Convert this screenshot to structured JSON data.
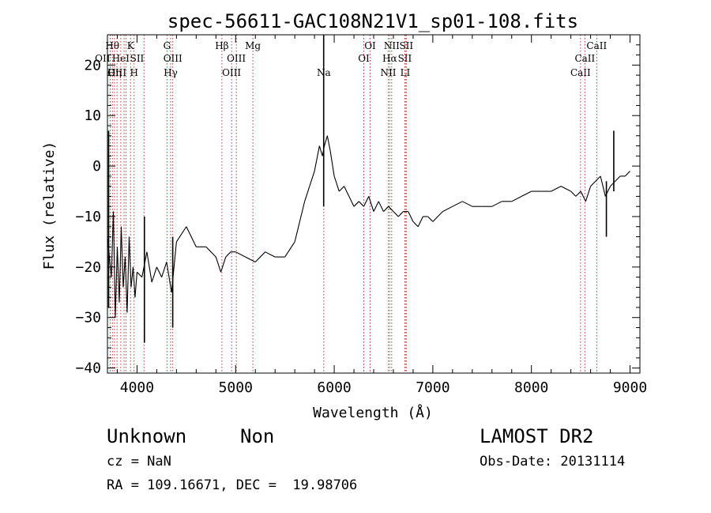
{
  "chart_data": {
    "type": "line",
    "title": "spec-56611-GAC108N21V1_sp01-108.fits",
    "xlabel": "Wavelength (Å)",
    "ylabel": "Flux (relative)",
    "xlim": [
      3700,
      9100
    ],
    "ylim": [
      -41,
      26
    ],
    "xticks": [
      4000,
      5000,
      6000,
      7000,
      8000,
      9000
    ],
    "yticks": [
      -40,
      -30,
      -20,
      -10,
      0,
      10,
      20
    ],
    "grid": false,
    "legend": "none",
    "colors": {
      "spectrum": "#000000",
      "lines": "#b22222"
    },
    "series": [
      {
        "x": [
          3700,
          3740,
          3760,
          3780,
          3800,
          3820,
          3840,
          3860,
          3880,
          3900,
          3920,
          3940,
          3960,
          3980,
          4000,
          4050,
          4100,
          4150,
          4200,
          4250,
          4300,
          4350,
          4400,
          4500,
          4600,
          4700,
          4800,
          4850,
          4900,
          4950,
          5000,
          5100,
          5200,
          5300,
          5400,
          5500,
          5600,
          5650,
          5700,
          5750,
          5800,
          5850,
          5880,
          5900,
          5930,
          5960,
          6000,
          6050,
          6100,
          6150,
          6200,
          6250,
          6300,
          6350,
          6400,
          6450,
          6500,
          6550,
          6600,
          6650,
          6700,
          6750,
          6800,
          6850,
          6900,
          6950,
          7000,
          7100,
          7200,
          7300,
          7400,
          7500,
          7600,
          7700,
          7800,
          7900,
          8000,
          8100,
          8200,
          8300,
          8400,
          8450,
          8500,
          8550,
          8600,
          8650,
          8700,
          8750,
          8800,
          8850,
          8900,
          8950,
          9000
        ],
        "y": [
          -14,
          -22,
          -9,
          -30,
          -16,
          -27,
          -12,
          -24,
          -18,
          -29,
          -14,
          -24,
          -20,
          -26,
          -21,
          -22,
          -17,
          -23,
          -20,
          -22,
          -19,
          -25,
          -15,
          -12,
          -16,
          -16,
          -18,
          -21,
          -18,
          -17,
          -17,
          -18,
          -19,
          -17,
          -18,
          -18,
          -15,
          -11,
          -7,
          -4,
          -1,
          4,
          2,
          4,
          6,
          3,
          -2,
          -5,
          -4,
          -6,
          -8,
          -7,
          -8,
          -6,
          -9,
          -7,
          -9,
          -8,
          -9,
          -10,
          -9,
          -9,
          -11,
          -12,
          -10,
          -10,
          -11,
          -9,
          -8,
          -7,
          -8,
          -8,
          -8,
          -7,
          -7,
          -6,
          -5,
          -5,
          -5,
          -4,
          -5,
          -6,
          -5,
          -7,
          -4,
          -3,
          -2,
          -6,
          -4,
          -3,
          -2,
          -2,
          -1
        ]
      }
    ],
    "spikes": [
      {
        "x": 5893,
        "y_top": 26,
        "y_bottom": -8
      },
      {
        "x": 3712,
        "y_top": 7,
        "y_bottom": -28
      },
      {
        "x": 4075,
        "y_top": -10,
        "y_bottom": -35
      },
      {
        "x": 4362,
        "y_top": -14,
        "y_bottom": -32
      },
      {
        "x": 8760,
        "y_top": -3,
        "y_bottom": -14
      },
      {
        "x": 8835,
        "y_top": 7,
        "y_bottom": -5
      }
    ],
    "lines": [
      {
        "x": 3728,
        "label": "OII",
        "row": 2,
        "anchor": "end"
      },
      {
        "x": 3750,
        "label": "Hθ",
        "row": 1,
        "anchor": "middle"
      },
      {
        "x": 3771,
        "label": "Hη",
        "row": 3,
        "anchor": "middle"
      },
      {
        "x": 3797,
        "label": "OIII",
        "row": 3,
        "anchor": "middle"
      },
      {
        "x": 3835,
        "label": "HeI",
        "row": 2,
        "anchor": "middle"
      },
      {
        "x": 3869,
        "label": "",
        "row": 0,
        "anchor": "middle"
      },
      {
        "x": 3889,
        "label": "",
        "row": 0,
        "anchor": "middle"
      },
      {
        "x": 3934,
        "label": "K",
        "row": 1,
        "anchor": "middle"
      },
      {
        "x": 3970,
        "label": "H",
        "row": 3,
        "anchor": "middle"
      },
      {
        "x": 4071,
        "label": "SII",
        "row": 2,
        "anchor": "end"
      },
      {
        "x": 4304,
        "label": "G",
        "row": 1,
        "anchor": "middle"
      },
      {
        "x": 4341,
        "label": "Hγ",
        "row": 3,
        "anchor": "middle"
      },
      {
        "x": 4363,
        "label": "OIII",
        "row": 2,
        "anchor": "middle"
      },
      {
        "x": 4861,
        "label": "Hβ",
        "row": 1,
        "anchor": "middle"
      },
      {
        "x": 4959,
        "label": "OIII",
        "row": 3,
        "anchor": "middle"
      },
      {
        "x": 5007,
        "label": "OIII",
        "row": 2,
        "anchor": "middle"
      },
      {
        "x": 5175,
        "label": "Mg",
        "row": 1,
        "anchor": "middle"
      },
      {
        "x": 5894,
        "label": "Na",
        "row": 3,
        "anchor": "middle"
      },
      {
        "x": 6300,
        "label": "OI",
        "row": 2,
        "anchor": "middle"
      },
      {
        "x": 6364,
        "label": "OI",
        "row": 1,
        "anchor": "middle"
      },
      {
        "x": 6548,
        "label": "NII",
        "row": 3,
        "anchor": "middle"
      },
      {
        "x": 6563,
        "label": "Hα",
        "row": 2,
        "anchor": "middle"
      },
      {
        "x": 6583,
        "label": "NII",
        "row": 1,
        "anchor": "middle"
      },
      {
        "x": 6716,
        "label": "SII",
        "row": 2,
        "anchor": "middle"
      },
      {
        "x": 6720,
        "label": "LI",
        "row": 3,
        "anchor": "middle"
      },
      {
        "x": 6731,
        "label": "SII",
        "row": 1,
        "anchor": "middle"
      },
      {
        "x": 8498,
        "label": "CaII",
        "row": 3,
        "anchor": "middle"
      },
      {
        "x": 8542,
        "label": "CaII",
        "row": 2,
        "anchor": "middle"
      },
      {
        "x": 8662,
        "label": "CaII",
        "row": 1,
        "anchor": "middle"
      }
    ]
  },
  "info": {
    "class": "Unknown",
    "subclass": "Non",
    "survey": "LAMOST DR2",
    "cz": "cz = NaN",
    "obs_date": "Obs-Date: 20131114",
    "coords": "RA = 109.16671, DEC =  19.98706"
  }
}
